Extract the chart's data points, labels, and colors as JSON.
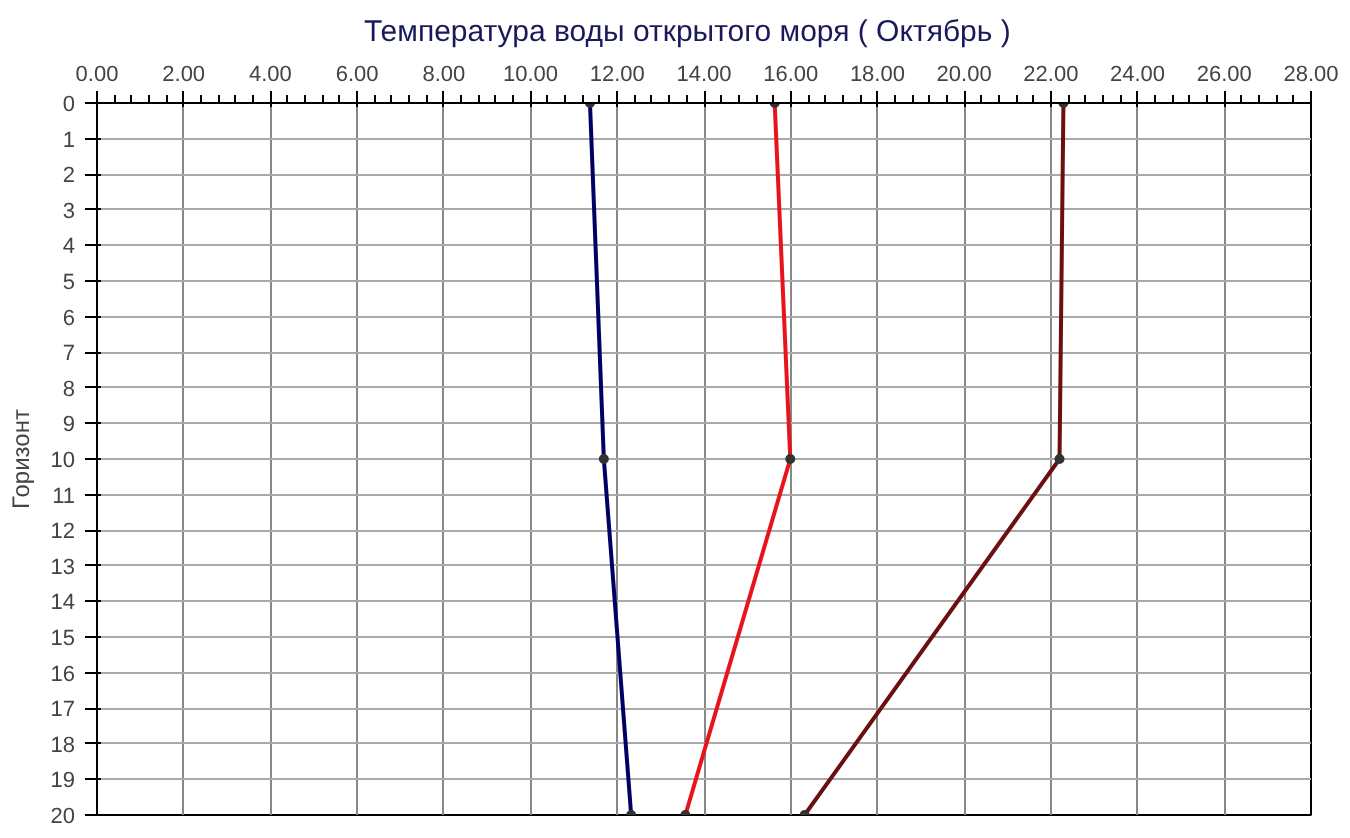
{
  "chart_data": {
    "type": "line",
    "title": "Температура воды открытого моря     ( Октябрь )",
    "ylabel": "Горизонт",
    "xlim": [
      0,
      28
    ],
    "xticks": [
      {
        "value": 0,
        "label": "0.00"
      },
      {
        "value": 2,
        "label": "2.00"
      },
      {
        "value": 4,
        "label": "4.00"
      },
      {
        "value": 6,
        "label": "6.00"
      },
      {
        "value": 8,
        "label": "8.00"
      },
      {
        "value": 10,
        "label": "10.00"
      },
      {
        "value": 12,
        "label": "12.00"
      },
      {
        "value": 14,
        "label": "14.00"
      },
      {
        "value": 16,
        "label": "16.00"
      },
      {
        "value": 18,
        "label": "18.00"
      },
      {
        "value": 20,
        "label": "20.00"
      },
      {
        "value": 22,
        "label": "22.00"
      },
      {
        "value": 24,
        "label": "24.00"
      },
      {
        "value": 26,
        "label": "26.00"
      },
      {
        "value": 28,
        "label": "28.00"
      }
    ],
    "ylim": [
      20,
      0
    ],
    "yticks": [
      0,
      1,
      2,
      3,
      4,
      5,
      6,
      7,
      8,
      9,
      10,
      11,
      12,
      13,
      14,
      15,
      16,
      17,
      18,
      19,
      20
    ],
    "grid": true,
    "marker": "circle",
    "line_style": "solid",
    "series": [
      {
        "color": "#000066",
        "values": [
          0,
          10,
          20
        ],
        "x": [
          11.37,
          11.69,
          12.32
        ]
      },
      {
        "color": "#e8141b",
        "values": [
          0,
          10,
          20
        ],
        "x": [
          15.63,
          15.99,
          13.57
        ]
      },
      {
        "color": "#6b0f0f",
        "values": [
          0,
          10,
          20
        ],
        "x": [
          22.29,
          22.2,
          16.32
        ]
      }
    ]
  }
}
